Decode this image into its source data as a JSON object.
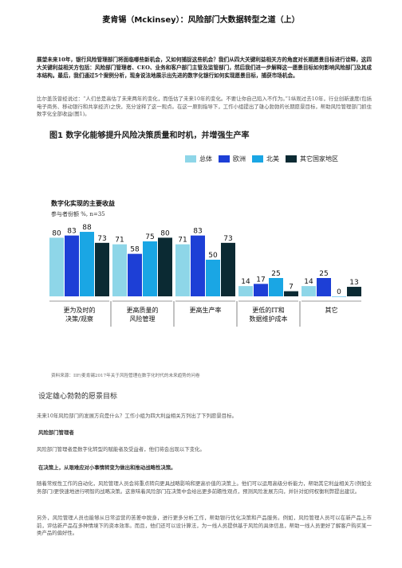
{
  "doc": {
    "title": "麦肯锡（Mckinsey）：风险部门大数据转型之道（上）",
    "intro": "展望未来10年，银行风险管理部门将面临哪些新机会，又如何捕捉这些机会？我们从四大关键利益相关方的角度对长期愿景目标进行诠释，这四大关键利益相关方包括：风险部门管理者、CEO、业务和客户部门主管及监管部门，然后我们进一步解释这一愿景目标如何影响风险部门及其成本结构。最后，我们通过5个案例分析，现身说法地展示出先进的数字化银行如何实现愿景目标，捕获市场机会。",
    "para1": "比尔盖茨曾经说过：“人们总是高估了未来两年的变化，而低估了未来10年的变化。不要让你自己陷入不作为。”1纵观过去10年，行业创新速度(包括电子商务、移动银行和共享经济)之快，充分诠释了这一观点。在这一原则指导下，工作小组提出了雄心勃勃的长期愿景目标，帮助风险管理部门抓住数字化全部收益(图1)。",
    "figure_title": "图1 数字化能够提升风险决策质量和时机，并增强生产率",
    "source": "资料来源：IIF/麦肯锡2017年关于风险管理在数字化时代的未来趋势的问卷",
    "section_title": "设定雄心勃勃的愿景目标",
    "para2": "未来10年风险部门的发展方向是什么？工作小组为四大利益相关方列出了下列愿景目标。",
    "sub1": "风险部门管理者",
    "para3": "风险部门管理者是数字化转型的赋能者及受益者，他们将会出现以下变化。",
    "sub2": "在决策上，从艰难应对小事情转变为做出和推动战略性决策。",
    "para4": "随着常规性工作的自动化，风险管理人员会将重点转向更具战略影响和更高价值的决策上。他们可以运用高级分析能力，帮助其它利益相关方(例如业务部门)更快速地进行明智的战略决策。这意味着风险部门在决策中会给出更多前瞻性观点，预测风险发展方向，并针对如何权衡利弊提出建议。",
    "para5": "另外，风险管理人员也能够从日常运营的苦差中脱身，进行更多分析工作，帮助银行优化决策和产品服务。例如，风险管理人员可以在新产品上市前，评估新产品在多种情境下的资本效率。而且，他们还可以设计算法，为一线人员提供基于风险的具体信息，帮助一线人员更好了解客户购买某一类产品的偏好性。"
  },
  "chart_data": {
    "type": "bar",
    "title": "数字化实现的主要收益",
    "subtitle": "参与者份额 %, n=35",
    "categories": [
      "更为及时的决策/观察",
      "更高质量的风险管理",
      "更高生产率",
      "更低的IT和数据维护成本",
      "其它"
    ],
    "series": [
      {
        "name": "总体",
        "color": "#8ed6e8",
        "values": [
          80,
          71,
          71,
          14,
          14
        ]
      },
      {
        "name": "欧洲",
        "color": "#1d3fd6",
        "values": [
          83,
          58,
          83,
          17,
          25
        ]
      },
      {
        "name": "北美",
        "color": "#1aa6e4",
        "values": [
          88,
          75,
          50,
          25,
          0
        ]
      },
      {
        "name": "其它国家地区",
        "color": "#0b2a33",
        "values": [
          73,
          80,
          73,
          7,
          13
        ]
      }
    ],
    "ylim": [
      0,
      100
    ]
  }
}
